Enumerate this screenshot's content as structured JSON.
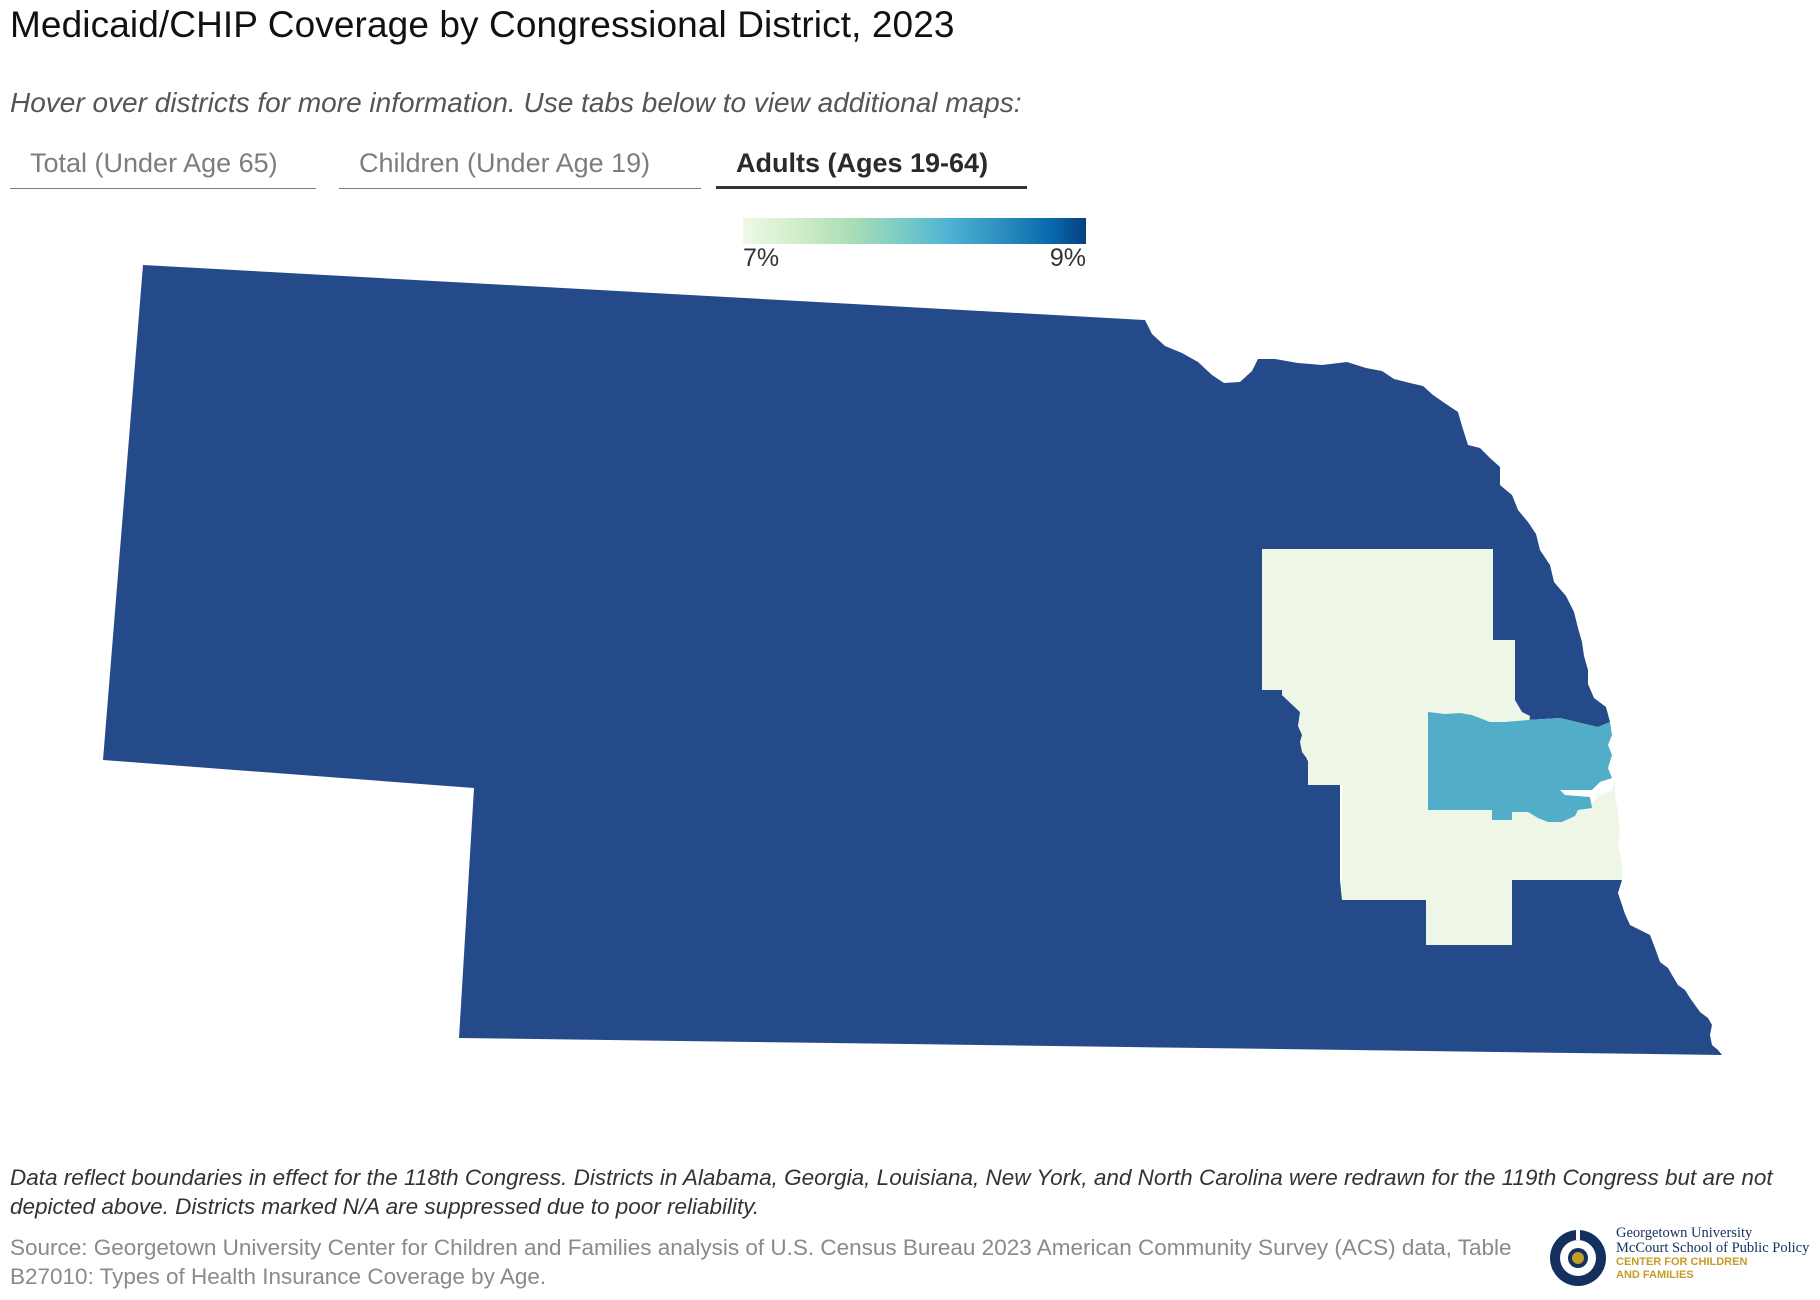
{
  "header": {
    "title": "Medicaid/CHIP Coverage by Congressional District, 2023",
    "subtitle": "Hover over districts for more information. Use tabs below to view additional maps:"
  },
  "tabs": [
    {
      "label": "Total (Under Age 65)",
      "active": false
    },
    {
      "label": "Children (Under Age 19)",
      "active": false
    },
    {
      "label": "Adults (Ages 19-64)",
      "active": true
    }
  ],
  "legend": {
    "min_label": "7%",
    "max_label": "9%",
    "scale_colors": [
      "#f0f9e8",
      "#ccebc5",
      "#a8ddb5",
      "#7bccc4",
      "#4eb3d3",
      "#2b8cbe",
      "#0868ac",
      "#084081"
    ]
  },
  "map": {
    "state": "Nebraska",
    "districts": [
      {
        "id": "NE-3",
        "region": "western/central",
        "shade": "high",
        "color": "#254a8a"
      },
      {
        "id": "NE-1",
        "region": "eastern",
        "shade": "low",
        "color": "#eef7e7"
      },
      {
        "id": "NE-2",
        "region": "Omaha area",
        "shade": "mid",
        "color": "#52adc9"
      }
    ]
  },
  "footer": {
    "note": "Data reflect boundaries in effect for the 118th Congress. Districts in Alabama, Georgia, Louisiana, New York, and North Carolina were redrawn for the 119th Congress but are not depicted above. Districts marked N/A are suppressed due to poor reliability.",
    "source": "Source: Georgetown University Center for Children and Families analysis of U.S. Census Bureau 2023 American Community Survey (ACS) data, Table B27010: Types of Health Insurance Coverage by Age."
  },
  "logo": {
    "line1": "Georgetown University",
    "line2": "McCourt School of Public Policy",
    "line3": "CENTER FOR CHILDREN",
    "line4": "AND FAMILIES",
    "colors": {
      "navy": "#14305e",
      "gold": "#c59b2a"
    }
  }
}
